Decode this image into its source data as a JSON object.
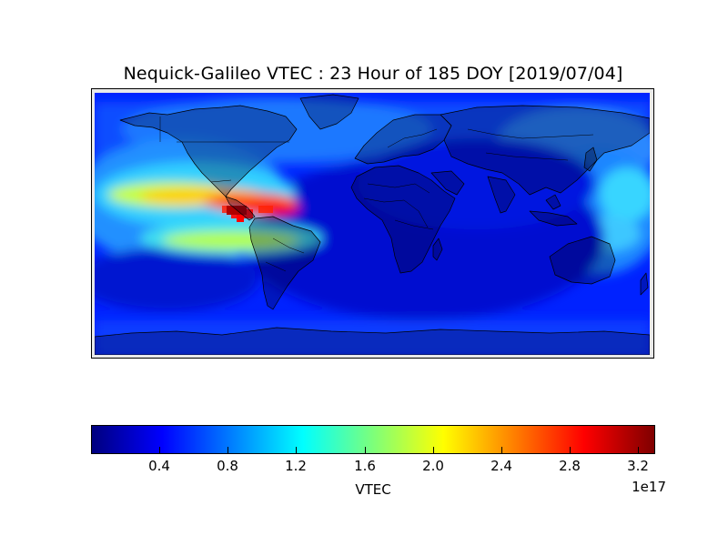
{
  "title": "Nequick-Galileo VTEC : 23 Hour of 185 DOY [2019/07/04]",
  "map": {
    "projection": "equirectangular",
    "field": "VTEC",
    "land_outline_color": "#000000",
    "land_shading": "dark-overlay",
    "colormap": "jet",
    "anomaly_region": "equatorial-eastern-pacific"
  },
  "colorbar": {
    "label": "VTEC",
    "exponent_label": "1e17",
    "min": 0.0,
    "max": 3.3,
    "ticks": [
      "0.4",
      "0.8",
      "1.2",
      "1.6",
      "2.0",
      "2.4",
      "2.8",
      "3.2"
    ],
    "colors": [
      "#00007f",
      "#0000ff",
      "#0080ff",
      "#00ffff",
      "#7dff7a",
      "#ffff00",
      "#ff8000",
      "#ff0000",
      "#7f0000"
    ]
  }
}
